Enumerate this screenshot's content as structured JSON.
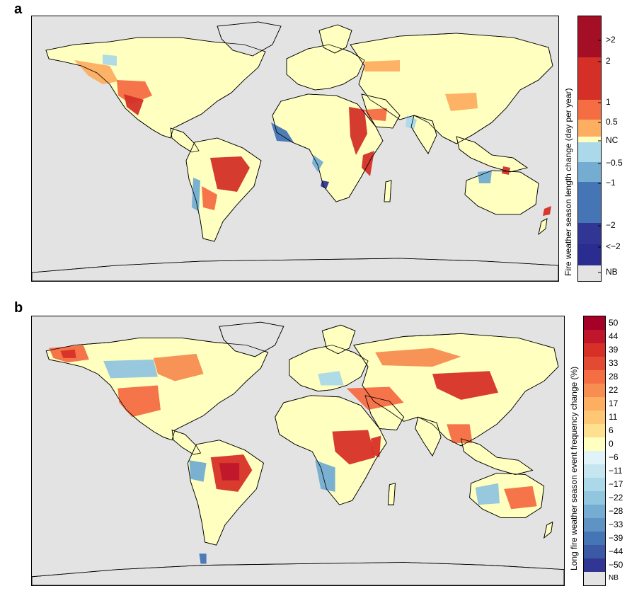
{
  "panels": [
    {
      "letter": "a",
      "legend_title": "Fire weather season length change (day per year)",
      "legend_bins": [
        {
          "label": ">2",
          "color": "#a50f26"
        },
        {
          "label": "2",
          "color": "#d43027"
        },
        {
          "label": "",
          "color": "#d43027"
        },
        {
          "label": "1",
          "color": "#f46d43"
        },
        {
          "label": "0.5",
          "color": "#fdae61"
        },
        {
          "label": "NC",
          "color": "#ffffbf"
        },
        {
          "label": "-0.5",
          "color": "#abd9e9"
        },
        {
          "label": "-1",
          "color": "#74add1"
        },
        {
          "label": "",
          "color": "#4575b4"
        },
        {
          "label": "-2",
          "color": "#313695"
        },
        {
          "label": "<-2",
          "color": "#2a2c8f"
        },
        {
          "label": "NB",
          "color": "#e3e3e3"
        }
      ],
      "tick_labels": [
        ">2",
        "2",
        "1",
        "0.5",
        "NC",
        "−0.5",
        "−1",
        "−2",
        "<−2",
        "NB"
      ]
    },
    {
      "letter": "b",
      "legend_title": "Long fire weather season event frequency change (%)",
      "tick_labels": [
        "50",
        "44",
        "39",
        "33",
        "28",
        "22",
        "17",
        "11",
        "6",
        "0",
        "−6",
        "−11",
        "−17",
        "−22",
        "−28",
        "−33",
        "−39",
        "−44",
        "−50",
        "NB"
      ],
      "legend_colors": [
        "#a50026",
        "#c0162b",
        "#d73027",
        "#e34a33",
        "#f46d43",
        "#f88d52",
        "#fdae61",
        "#fdc776",
        "#fee090",
        "#ffffbf",
        "#e0f3f8",
        "#c6e6ef",
        "#abd9e9",
        "#92c5de",
        "#74add1",
        "#5f93c3",
        "#4575b4",
        "#3b59a4",
        "#313695",
        "#e3e3e3"
      ]
    }
  ],
  "colors": {
    "ocean_background": "#e3e3e3",
    "no_change_land": "#ffffbf",
    "border": "#000000"
  }
}
